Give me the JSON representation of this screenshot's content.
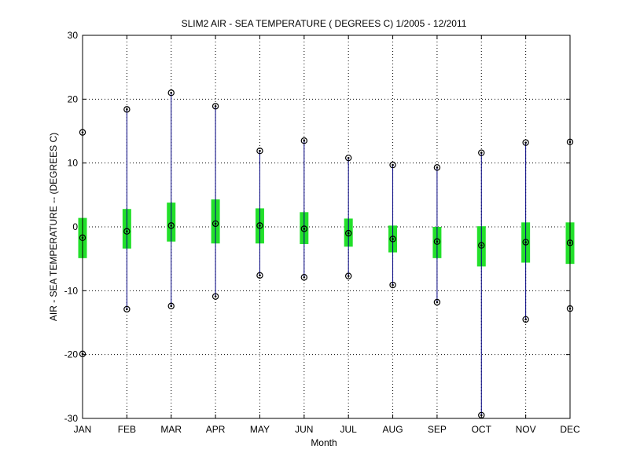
{
  "chart_data": {
    "type": "box",
    "title": "SLIM2  AIR - SEA TEMPERATURE ( DEGREES C) 1/2005 - 12/2011",
    "xlabel": "Month",
    "ylabel": "AIR - SEA TEMPERATURE -- (DEGREES C)",
    "categories": [
      "JAN",
      "FEB",
      "MAR",
      "APR",
      "MAY",
      "JUN",
      "JUL",
      "AUG",
      "SEP",
      "OCT",
      "NOV",
      "DEC"
    ],
    "ylim": [
      -30,
      30
    ],
    "yticks": [
      30,
      20,
      10,
      0,
      -10,
      -20,
      -30
    ],
    "grid": true,
    "min": [
      -19.9,
      -12.9,
      -12.4,
      -10.9,
      -7.6,
      -7.9,
      -7.7,
      -9.1,
      -11.8,
      -29.5,
      -14.5,
      -12.8
    ],
    "q1": [
      -4.9,
      -3.4,
      -2.3,
      -2.6,
      -2.6,
      -2.7,
      -3.1,
      -4.0,
      -4.9,
      -6.2,
      -5.6,
      -5.8
    ],
    "median": [
      -1.7,
      -0.7,
      0.2,
      0.5,
      0.2,
      -0.3,
      -1.0,
      -1.9,
      -2.3,
      -2.9,
      -2.4,
      -2.5
    ],
    "q3": [
      1.4,
      2.8,
      3.8,
      4.3,
      2.9,
      2.3,
      1.3,
      0.2,
      0.0,
      0.1,
      0.7,
      0.7
    ],
    "max": [
      14.8,
      18.4,
      21.0,
      18.9,
      11.9,
      13.5,
      10.8,
      9.7,
      9.3,
      11.6,
      13.2,
      13.3
    ],
    "colors": {
      "box": "#22e02a",
      "whisker": "#000080",
      "marker": "#000080",
      "grid": "#000000"
    }
  }
}
